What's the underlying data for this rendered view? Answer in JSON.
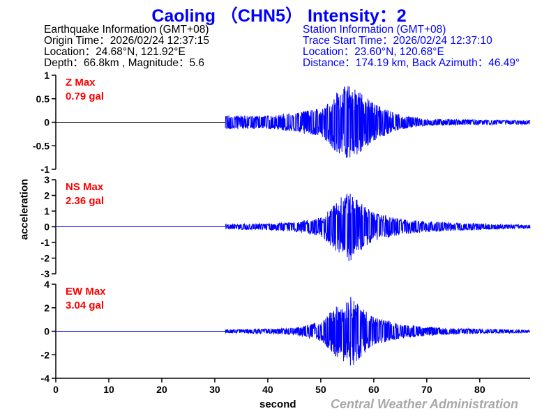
{
  "title": "Caoling （CHN5） Intensity：2",
  "earthquake_info": {
    "heading": "Earthquake Information  (GMT+08)",
    "origin_time": "Origin Time：2026/02/24 12:37:15",
    "location": "Location：24.68°N, 121.92°E",
    "depth_magnitude": "Depth：66.8km , Magnitude：5.6"
  },
  "station_info": {
    "heading": "Station Information  (GMT+08)",
    "trace_start": "Trace Start Time：2026/02/24 12:37:10",
    "location": "Location：23.60°N, 120.68°E",
    "distance": "Distance：174.19 km, Back Azimuth：46.49°"
  },
  "watermark": "Central Weather Administration",
  "colors": {
    "trace": "#0000ff",
    "max_label": "#ff0000",
    "title": "#0000ff"
  },
  "chart_data": {
    "type": "line",
    "xlabel": "second",
    "ylabel": "acceleration",
    "xlim": [
      0,
      89.5
    ],
    "xticks": [
      0,
      10,
      20,
      30,
      40,
      50,
      60,
      70,
      80
    ],
    "grid": false,
    "panels": [
      {
        "channel": "Z",
        "max_label": "Z Max",
        "max_value": "0.79 gal",
        "ylim": [
          -1,
          1
        ],
        "yticks": [
          "1",
          "0.5",
          "0",
          "-0.5",
          "-1"
        ],
        "ytick_values": [
          1,
          0.5,
          0,
          -0.5,
          -1
        ],
        "onset": 32,
        "peak": 0.79,
        "envelope": [
          [
            32,
            0.15
          ],
          [
            40,
            0.14
          ],
          [
            45,
            0.2
          ],
          [
            50,
            0.3
          ],
          [
            53,
            0.65
          ],
          [
            55,
            0.79
          ],
          [
            57,
            0.7
          ],
          [
            60,
            0.4
          ],
          [
            65,
            0.15
          ],
          [
            70,
            0.07
          ],
          [
            89.5,
            0.04
          ]
        ]
      },
      {
        "channel": "NS",
        "max_label": "NS Max",
        "max_value": "2.36 gal",
        "ylim": [
          -3,
          3
        ],
        "yticks": [
          "3",
          "2",
          "1",
          "0",
          "-1",
          "-2",
          "-3"
        ],
        "ytick_values": [
          3,
          2,
          1,
          0,
          -1,
          -2,
          -3
        ],
        "onset": 32,
        "peak": 2.36,
        "envelope": [
          [
            32,
            0.15
          ],
          [
            40,
            0.2
          ],
          [
            45,
            0.3
          ],
          [
            50,
            0.6
          ],
          [
            53,
            1.6
          ],
          [
            55,
            2.36
          ],
          [
            57,
            1.7
          ],
          [
            60,
            0.9
          ],
          [
            65,
            0.5
          ],
          [
            70,
            0.35
          ],
          [
            75,
            0.25
          ],
          [
            89.5,
            0.1
          ]
        ]
      },
      {
        "channel": "EW",
        "max_label": "EW Max",
        "max_value": "3.04 gal",
        "ylim": [
          -4,
          4
        ],
        "yticks": [
          "4",
          "2",
          "0",
          "-2",
          "-4"
        ],
        "ytick_values": [
          4,
          2,
          0,
          -2,
          -4
        ],
        "onset": 32,
        "peak": 3.04,
        "envelope": [
          [
            32,
            0.15
          ],
          [
            40,
            0.2
          ],
          [
            45,
            0.3
          ],
          [
            50,
            0.8
          ],
          [
            53,
            2.2
          ],
          [
            56,
            3.04
          ],
          [
            58,
            2.0
          ],
          [
            60,
            1.2
          ],
          [
            65,
            0.6
          ],
          [
            70,
            0.4
          ],
          [
            75,
            0.25
          ],
          [
            89.5,
            0.12
          ]
        ]
      }
    ]
  }
}
